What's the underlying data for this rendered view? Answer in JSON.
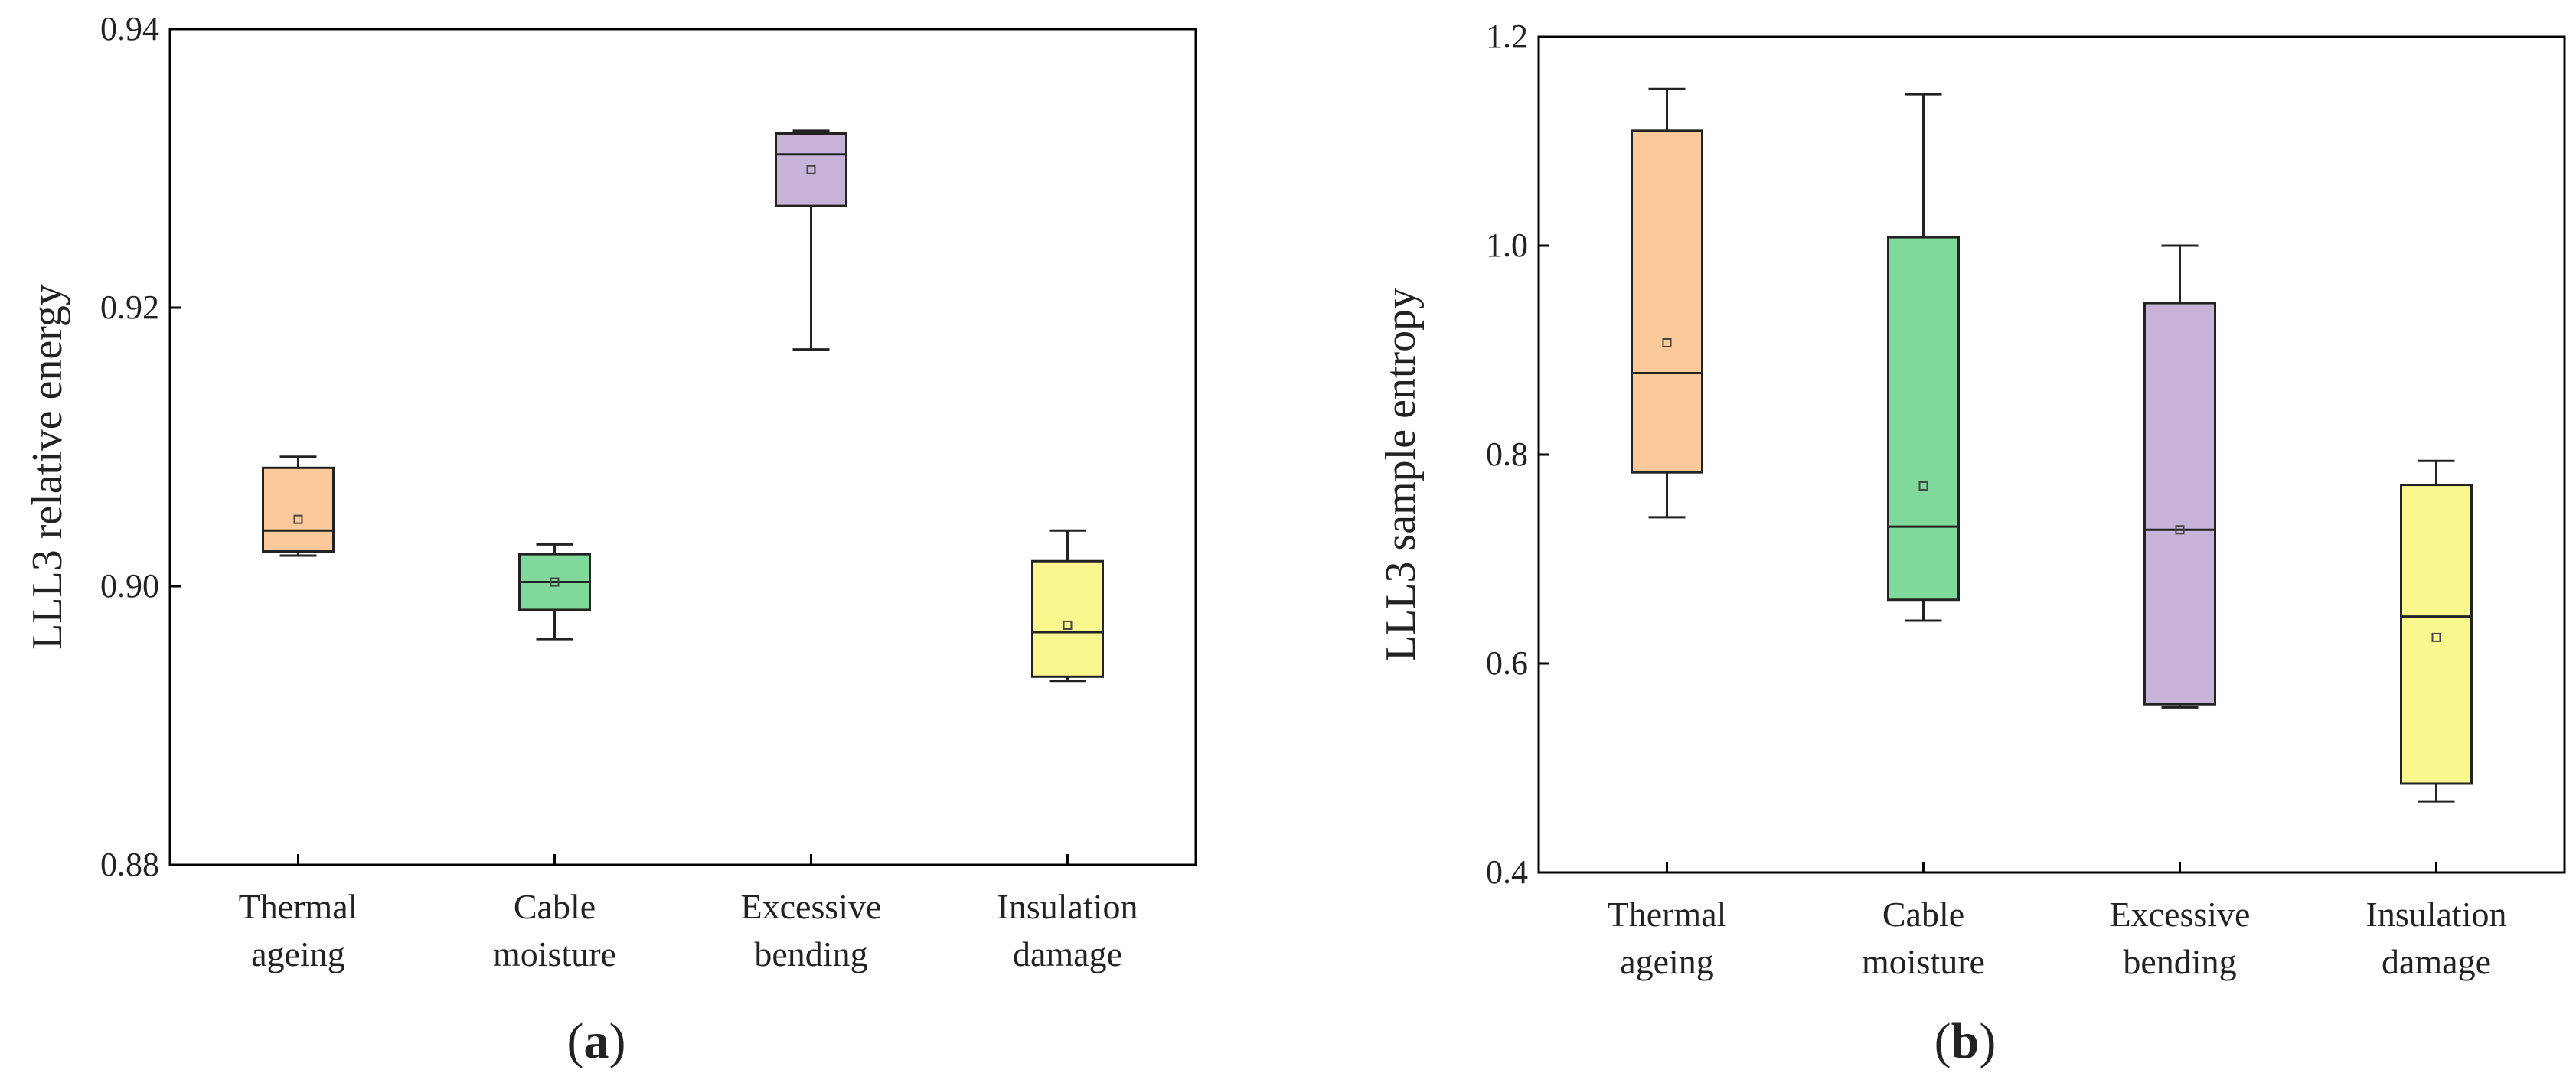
{
  "chart_data": [
    {
      "type": "box",
      "panel_label": "a",
      "title": "",
      "xlabel": "",
      "ylabel": "LLL3 relative energy",
      "ylim": [
        0.88,
        0.94
      ],
      "yticks": [
        "0.88",
        "0.90",
        "0.92",
        "0.94"
      ],
      "categories": [
        [
          "Thermal",
          "ageing"
        ],
        [
          "Cable",
          "moisture"
        ],
        [
          "Excessive",
          "bending"
        ],
        [
          "Insulation",
          "damage"
        ]
      ],
      "boxes": [
        {
          "name": "Thermal ageing",
          "whisker_low": 0.9022,
          "q1": 0.9025,
          "median": 0.904,
          "q3": 0.9085,
          "whisker_high": 0.9093,
          "mean": 0.9048,
          "color": "#FBC99A"
        },
        {
          "name": "Cable moisture",
          "whisker_low": 0.8962,
          "q1": 0.8983,
          "median": 0.9003,
          "q3": 0.9023,
          "whisker_high": 0.903,
          "mean": 0.9003,
          "color": "#7FD99B"
        },
        {
          "name": "Excessive bending",
          "whisker_low": 0.917,
          "q1": 0.9273,
          "median": 0.931,
          "q3": 0.9325,
          "whisker_high": 0.9327,
          "mean": 0.9299,
          "color": "#C8B3D8"
        },
        {
          "name": "Insulation damage",
          "whisker_low": 0.8932,
          "q1": 0.8935,
          "median": 0.8967,
          "q3": 0.9018,
          "whisker_high": 0.904,
          "mean": 0.8972,
          "color": "#FAF78F"
        }
      ]
    },
    {
      "type": "box",
      "panel_label": "b",
      "title": "",
      "xlabel": "",
      "ylabel": "LLL3 sample entropy",
      "ylim": [
        0.4,
        1.2
      ],
      "yticks": [
        "0.4",
        "0.6",
        "0.8",
        "1.0",
        "1.2"
      ],
      "categories": [
        [
          "Thermal",
          "ageing"
        ],
        [
          "Cable",
          "moisture"
        ],
        [
          "Excessive",
          "bending"
        ],
        [
          "Insulation",
          "damage"
        ]
      ],
      "boxes": [
        {
          "name": "Thermal ageing",
          "whisker_low": 0.74,
          "q1": 0.783,
          "median": 0.878,
          "q3": 1.11,
          "whisker_high": 1.15,
          "mean": 0.907,
          "color": "#FBC99A"
        },
        {
          "name": "Cable moisture",
          "whisker_low": 0.641,
          "q1": 0.661,
          "median": 0.731,
          "q3": 1.008,
          "whisker_high": 1.145,
          "mean": 0.77,
          "color": "#7FD99B"
        },
        {
          "name": "Excessive bending",
          "whisker_low": 0.558,
          "q1": 0.561,
          "median": 0.728,
          "q3": 0.945,
          "whisker_high": 1.0,
          "mean": 0.728,
          "color": "#C8B3D8"
        },
        {
          "name": "Insulation damage",
          "whisker_low": 0.468,
          "q1": 0.485,
          "median": 0.645,
          "q3": 0.771,
          "whisker_high": 0.794,
          "mean": 0.625,
          "color": "#FAF78F"
        }
      ]
    }
  ]
}
